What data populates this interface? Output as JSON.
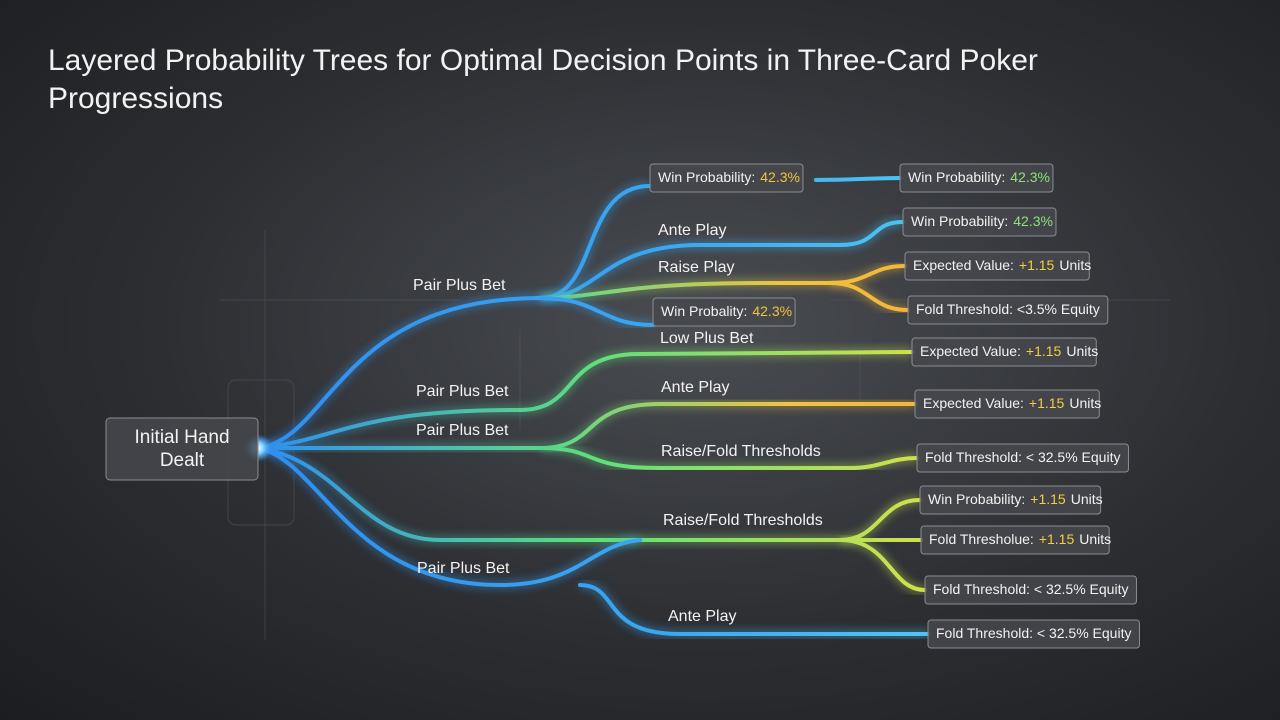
{
  "title": "Layered Probability Trees for Optimal Decision Points in Three-Card Poker Progressions",
  "root": {
    "lines": [
      "Initial Hand",
      "Dealt"
    ]
  },
  "branches": [
    "Pair Plus Bet",
    "Ante Play",
    "Raise Play",
    "Low Plus Bet",
    "Pair Plus Bet",
    "Pair Plus Bet",
    "Ante Play",
    "Raise/Fold Thresholds",
    "Raise/Fold Thresholds",
    "Pair Plus Bet",
    "Ante Play"
  ],
  "mid_boxes": [
    {
      "label": "Win Probability:",
      "value": "42.3%"
    },
    {
      "label": "Win Probality:",
      "value": "42.3%"
    }
  ],
  "leaves": [
    {
      "label": "Win Probability:",
      "value": "42.3%"
    },
    {
      "label": "Win Probability:",
      "value": "42.3%"
    },
    {
      "label": "Expected Value:",
      "value": "+1.15",
      "suffix": "Units"
    },
    {
      "label": "Fold Threshold: <3.5% Equity"
    },
    {
      "label": "Expected Value:",
      "value": "+1.15",
      "suffix": "Units"
    },
    {
      "label": "Expected Value:",
      "value": "+1.15",
      "suffix": "Units"
    },
    {
      "label": "Fold Threshold: < 32.5% Equity"
    },
    {
      "label": "Win Probability:",
      "value": "+1.15",
      "suffix": "Units"
    },
    {
      "label": "Fold Thresholue:",
      "value": "+1.15",
      "suffix": "Units"
    },
    {
      "label": "Fold Threshold: < 32.5% Equity"
    },
    {
      "label": "Fold Threshold: < 32.5% Equity"
    }
  ]
}
